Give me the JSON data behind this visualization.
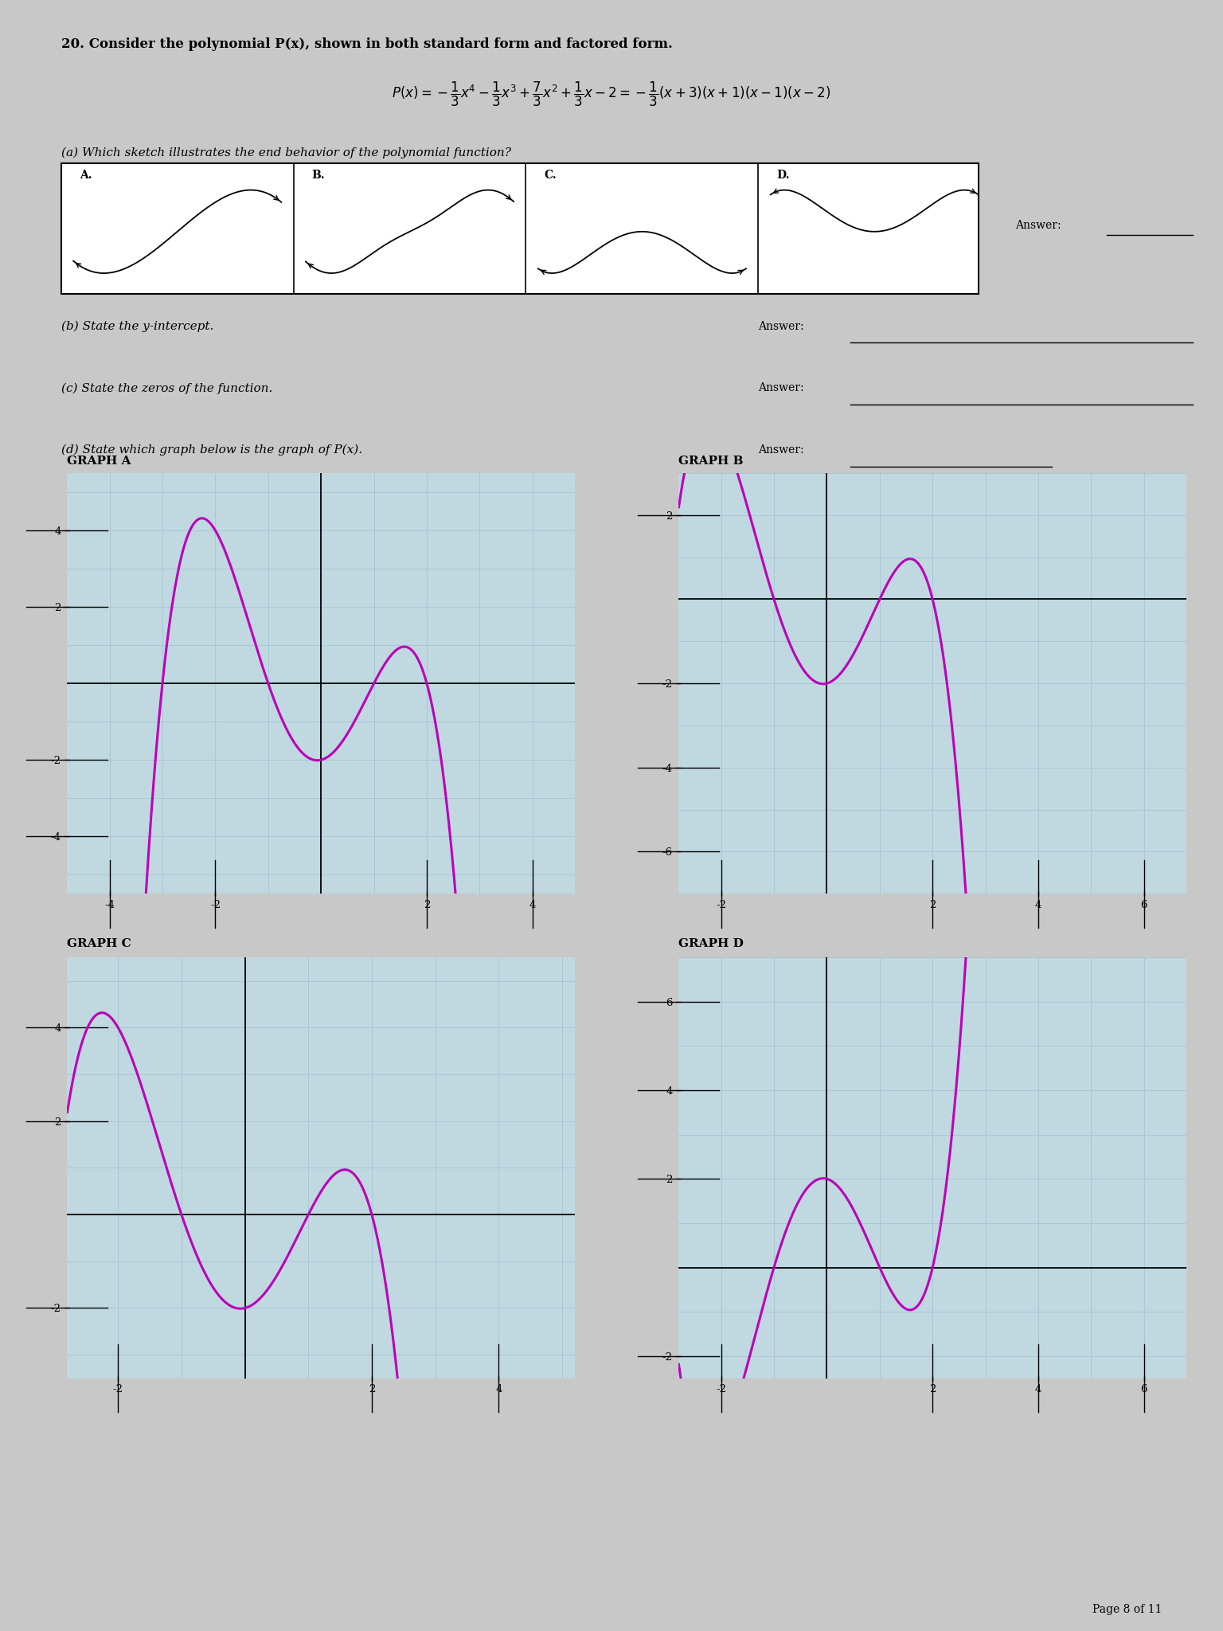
{
  "bg_color": "#c8c8c8",
  "paper_color": "#dcdcdc",
  "curve_color": "#bb00bb",
  "grid_color": "#99bbcc",
  "grid_bg": "#c0d8e0",
  "title": "20. Consider the polynomial P(x), shown in both standard form and factored form.",
  "qa": "(a) Which sketch illustrates the end behavior of the polynomial function?",
  "qb": "(b) State the y-intercept.",
  "qc": "(c) State the zeros of the function.",
  "qd": "(d) State which graph below is the graph of P(x).",
  "answer_label": "Answer:",
  "graph_a_label": "GRAPH A",
  "graph_b_label": "GRAPH B",
  "graph_c_label": "GRAPH C",
  "graph_d_label": "GRAPH D",
  "page_footer": "Page 8 of 11",
  "graph_A_xlim": [
    -4.8,
    4.8
  ],
  "graph_A_ylim": [
    -5.5,
    5.5
  ],
  "graph_A_xticks": [
    -4,
    -2,
    2,
    4
  ],
  "graph_A_yticks": [
    -4,
    -2,
    2,
    4
  ],
  "graph_B_xlim": [
    -2.8,
    6.8
  ],
  "graph_B_ylim": [
    -7,
    3
  ],
  "graph_B_xticks": [
    -2,
    2,
    4,
    6
  ],
  "graph_B_yticks": [
    -6,
    -4,
    -2,
    2
  ],
  "graph_C_xlim": [
    -2.8,
    5.2
  ],
  "graph_C_ylim": [
    -3.5,
    5.5
  ],
  "graph_C_xticks": [
    -2,
    2,
    4
  ],
  "graph_C_yticks": [
    -2,
    2,
    4
  ],
  "graph_D_xlim": [
    -2.8,
    6.8
  ],
  "graph_D_ylim": [
    -2.5,
    7
  ],
  "graph_D_xticks": [
    -2,
    2,
    4,
    6
  ],
  "graph_D_yticks": [
    -2,
    2,
    4,
    6
  ]
}
